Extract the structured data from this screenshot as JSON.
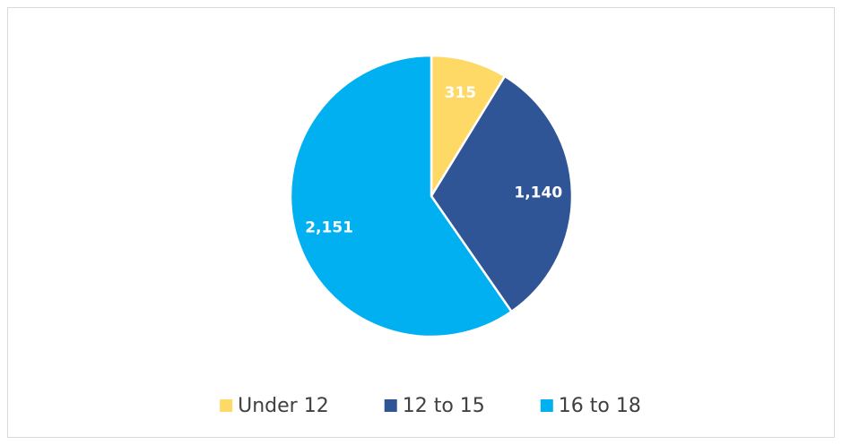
{
  "chart_data": {
    "type": "pie",
    "categories": [
      "Under 12",
      "12 to 15",
      "16 to 18"
    ],
    "values": [
      315,
      1140,
      2151
    ],
    "value_labels": [
      "315",
      "1,140",
      "2,151"
    ],
    "colors": [
      "#FFD966",
      "#2F5597",
      "#00B0F0"
    ],
    "legend": "bottom"
  }
}
